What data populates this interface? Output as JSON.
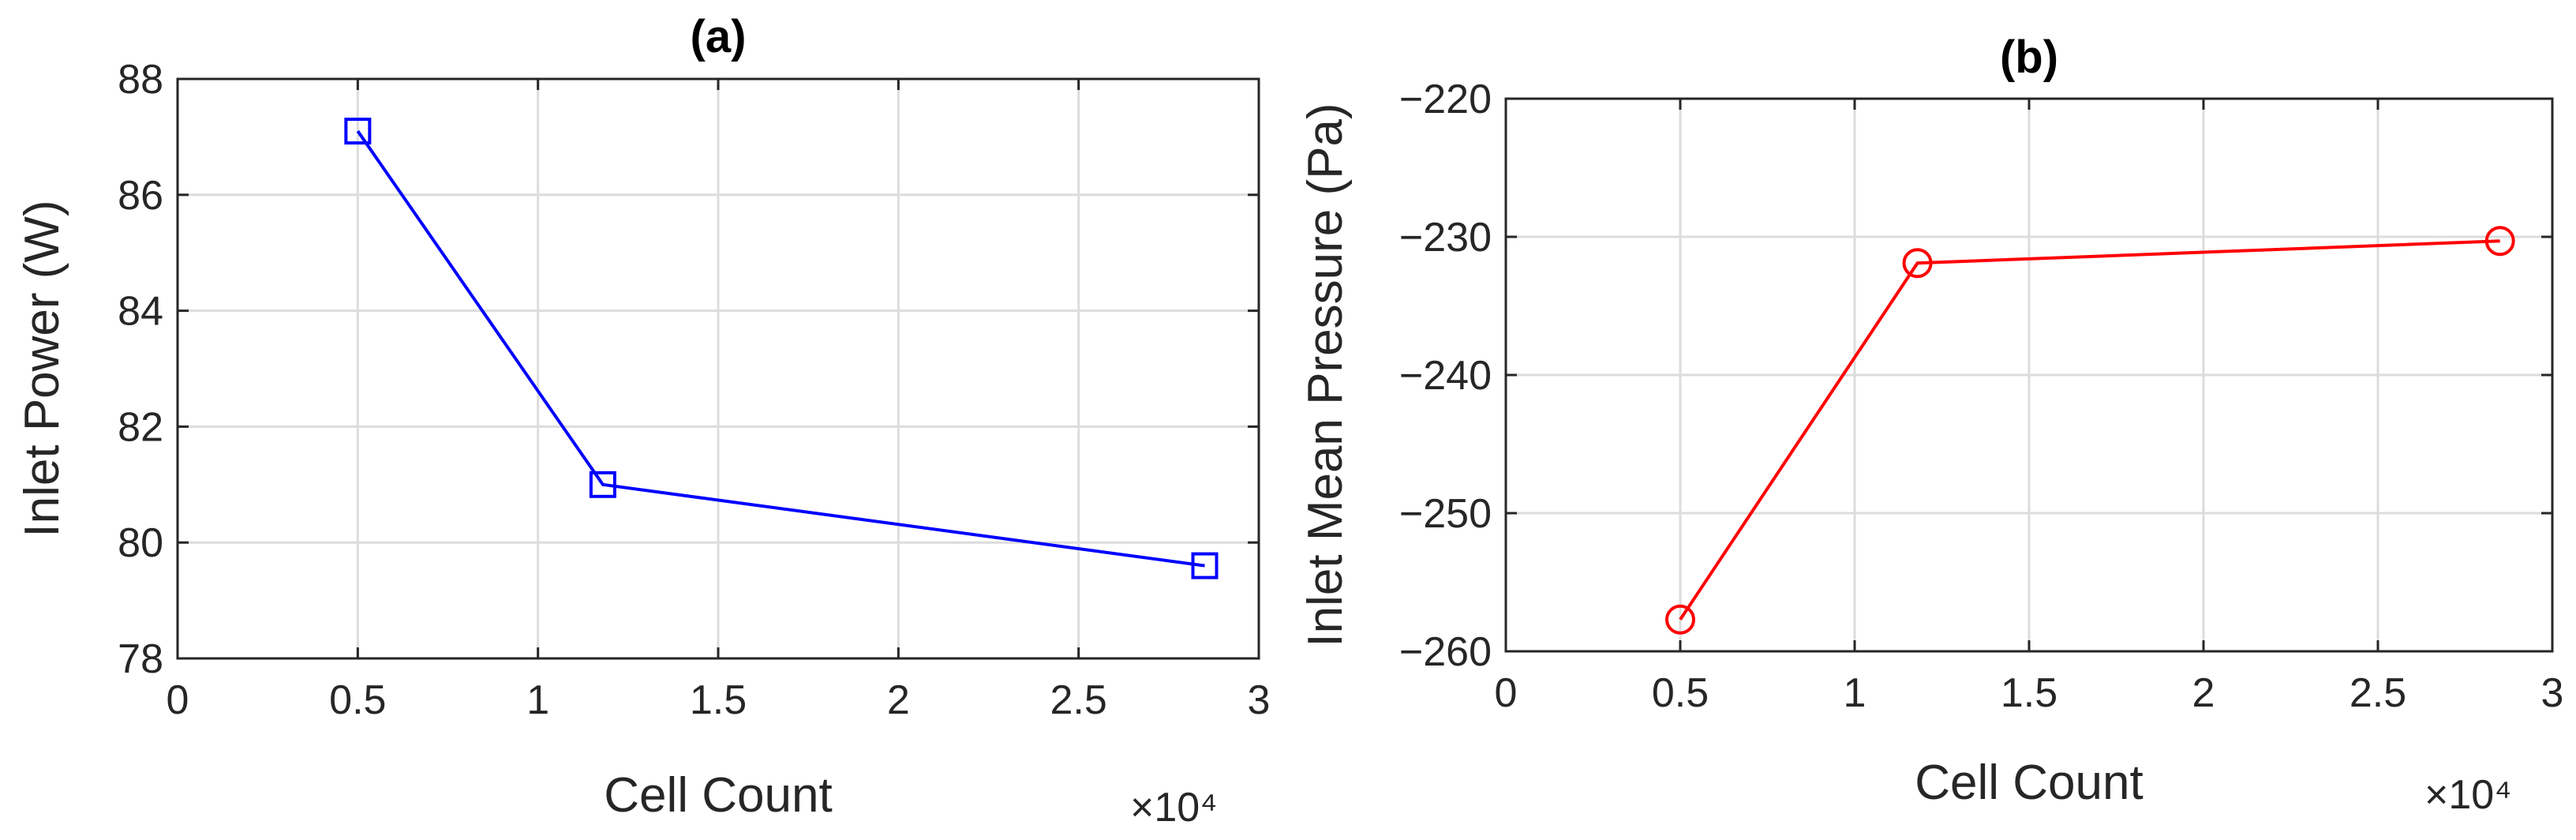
{
  "chart_data": [
    {
      "type": "line",
      "title": "(a)",
      "xlabel": "Cell Count",
      "ylabel": "Inlet Power (W)",
      "x_exponent_label": "×10⁴",
      "xlim": [
        0,
        3
      ],
      "ylim": [
        78,
        88
      ],
      "xticks": [
        "0",
        "0.5",
        "1",
        "1.5",
        "2",
        "2.5",
        "3"
      ],
      "yticks": [
        "78",
        "80",
        "82",
        "84",
        "86",
        "88"
      ],
      "grid": true,
      "series": [
        {
          "color": "#0000ff",
          "marker": "square",
          "x": [
            0.5,
            1.18,
            2.85
          ],
          "y": [
            87.1,
            81.0,
            79.6
          ]
        }
      ]
    },
    {
      "type": "line",
      "title": "(b)",
      "xlabel": "Cell Count",
      "ylabel": "Inlet Mean Pressure (Pa)",
      "x_exponent_label": "×10⁴",
      "xlim": [
        0,
        3
      ],
      "ylim": [
        -260,
        -220
      ],
      "xticks": [
        "0",
        "0.5",
        "1",
        "1.5",
        "2",
        "2.5",
        "3"
      ],
      "yticks": [
        "−260",
        "−250",
        "−240",
        "−230",
        "−220"
      ],
      "grid": true,
      "series": [
        {
          "color": "#ff0000",
          "marker": "circle",
          "x": [
            0.5,
            1.18,
            2.85
          ],
          "y": [
            -257.7,
            -231.9,
            -230.3
          ]
        }
      ]
    }
  ]
}
